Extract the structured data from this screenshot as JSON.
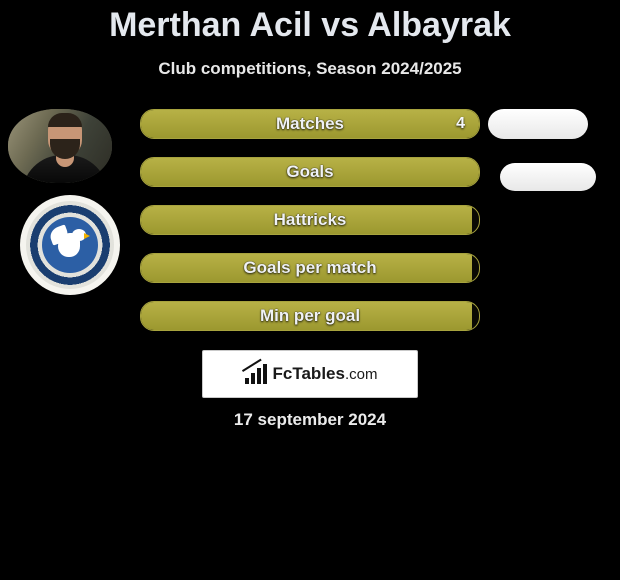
{
  "title": "Merthan Acil vs Albayrak",
  "subtitle": "Club competitions, Season 2024/2025",
  "date": "17 september 2024",
  "watermark": {
    "brand": "FcTables",
    "tld": ".com"
  },
  "colors": {
    "bar_border": "#a7a33e",
    "bar_fill_top": "#b7b146",
    "bar_fill_bottom": "#9c982f",
    "background": "#000000",
    "title_text": "#e4e8ee"
  },
  "stats": [
    {
      "label": "Matches",
      "value": "4",
      "fill_percent": 100
    },
    {
      "label": "Goals",
      "value": "",
      "fill_percent": 100
    },
    {
      "label": "Hattricks",
      "value": "",
      "fill_percent": 98
    },
    {
      "label": "Goals per match",
      "value": "",
      "fill_percent": 98
    },
    {
      "label": "Min per goal",
      "value": "",
      "fill_percent": 98
    }
  ],
  "right_badges": [
    {
      "present": true
    },
    {
      "present": true
    }
  ],
  "player1": {
    "name": "Merthan Acil"
  },
  "player2": {
    "name": "Albayrak"
  }
}
